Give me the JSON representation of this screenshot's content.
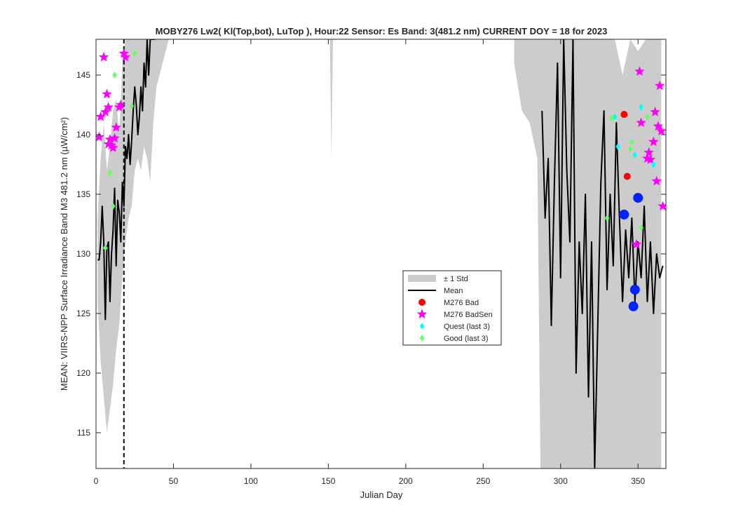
{
  "chart_data": {
    "type": "line",
    "title": "MOBY276   Lw2( Kl(Top,bot), LuTop ),   Hour:22 Sensor: Es Band: 3(481.2 nm)   CURRENT DOY = 18 for 2023",
    "xlabel": "Julian Day",
    "ylabel": "MEAN: VIIRS-NPP Surface Irradiance Band M3 481.2 nm (µW/cm²)",
    "xlim": [
      0,
      368
    ],
    "ylim": [
      112,
      148
    ],
    "xticks": [
      0,
      50,
      100,
      150,
      200,
      250,
      300,
      350
    ],
    "yticks": [
      115,
      120,
      125,
      130,
      135,
      140,
      145
    ],
    "grid": false,
    "legend_position": "center-right",
    "current_doy": 18,
    "colors": {
      "std_band": "#cccccc",
      "mean": "#000000",
      "bad": "#ff0000",
      "badsen": "#ff00ff",
      "quest": "#00ffff",
      "good": "#66ff66",
      "recent": "#0022ff"
    },
    "legend": [
      {
        "label": "± 1 Std",
        "key": "std_band",
        "marker": "patch"
      },
      {
        "label": "Mean",
        "key": "mean",
        "marker": "line"
      },
      {
        "label": "M276 Bad",
        "key": "bad",
        "marker": "circle"
      },
      {
        "label": "M276 BadSen",
        "key": "badsen",
        "marker": "star"
      },
      {
        "label": "Quest (last 3)",
        "key": "quest",
        "marker": "diamond"
      },
      {
        "label": "Good (last 3)",
        "key": "good",
        "marker": "diamond"
      }
    ],
    "std_band": [
      {
        "x": [
          1,
          3,
          5,
          7,
          9,
          11,
          13,
          15,
          17,
          19,
          21,
          23,
          25,
          27,
          29,
          31,
          33,
          35,
          37,
          39,
          41,
          43,
          45,
          47
        ],
        "upper": [
          133,
          138,
          141,
          137,
          139,
          142,
          143,
          140,
          146,
          148,
          148,
          148,
          148,
          148,
          148,
          148,
          148,
          148,
          148,
          148,
          148,
          148,
          148,
          148
        ],
        "lower": [
          126,
          121,
          118,
          115,
          117,
          119,
          122,
          124,
          128,
          131,
          133,
          134,
          137,
          138,
          137,
          139,
          138,
          136,
          141,
          144,
          145,
          146,
          147,
          148
        ]
      },
      {
        "x": [
          151,
          152,
          153
        ],
        "upper": [
          148,
          148,
          148
        ],
        "lower": [
          148,
          138,
          148
        ]
      },
      {
        "x": [
          270,
          275,
          280,
          285,
          287,
          290,
          295,
          300,
          305,
          310,
          315,
          320,
          325,
          330,
          335,
          340,
          345,
          350,
          355,
          360,
          365
        ],
        "upper": [
          148,
          148,
          148,
          148,
          148,
          148,
          148,
          148,
          148,
          148,
          148,
          148,
          148,
          148,
          148,
          145,
          148,
          147,
          148,
          148,
          148
        ],
        "lower": [
          146,
          142,
          141,
          138,
          112,
          112,
          112,
          112,
          112,
          112,
          112,
          112,
          112,
          112,
          112,
          112,
          112,
          112,
          112,
          112,
          112
        ]
      }
    ],
    "mean_series": [
      {
        "x": [
          1,
          2,
          3,
          4,
          5,
          6,
          7,
          8,
          9,
          10,
          11,
          12,
          13,
          14,
          15,
          16,
          17,
          18,
          19,
          20,
          21,
          22,
          23,
          24,
          25,
          26,
          27,
          28,
          29,
          30,
          31,
          32,
          33,
          34,
          35,
          36,
          37,
          38
        ],
        "y": [
          129.5,
          129.5,
          131,
          134,
          131,
          124.5,
          130.5,
          131,
          126,
          130,
          132,
          135.5,
          129,
          134.5,
          133.5,
          131,
          136,
          134,
          139,
          138,
          140,
          137.5,
          139.5,
          142,
          144,
          142.5,
          140,
          141.5,
          144,
          142,
          146,
          144,
          148,
          145,
          148,
          148,
          148,
          148
        ]
      },
      {
        "x": [
          288,
          290,
          292,
          294,
          296,
          298,
          300,
          302,
          304,
          306,
          308,
          310,
          312,
          314,
          316,
          318,
          320,
          322,
          324,
          326,
          328,
          330,
          332,
          334,
          336,
          338,
          340,
          342,
          344,
          346,
          348,
          350,
          352,
          354,
          356,
          358,
          360,
          362,
          364,
          366
        ],
        "y": [
          142,
          133,
          138,
          124,
          136,
          146,
          128,
          148,
          137,
          131,
          148,
          120,
          131,
          125,
          135,
          118,
          131,
          112,
          124,
          136,
          142,
          127,
          135,
          129,
          141,
          133,
          126,
          132,
          128,
          133,
          126,
          131,
          128,
          134,
          126,
          131,
          125,
          130,
          128,
          129
        ]
      }
    ],
    "series": [
      {
        "name": "M276 Bad",
        "key": "bad",
        "x": [
          341,
          343
        ],
        "y": [
          141.7,
          136.5
        ]
      },
      {
        "name": "M276 BadSen",
        "key": "badsen",
        "x": [
          2,
          3,
          5,
          6,
          7,
          8,
          8,
          9,
          10,
          11,
          12,
          13,
          15,
          16,
          18,
          19,
          349,
          351,
          352,
          356,
          357,
          358,
          360,
          361,
          362,
          363,
          364,
          365,
          366
        ],
        "y": [
          139.8,
          141.5,
          146.5,
          141.9,
          143.4,
          139.2,
          142.3,
          139.6,
          139.1,
          138.9,
          139.7,
          140.6,
          142.3,
          142.5,
          146.8,
          146.5,
          130.8,
          145.3,
          141.0,
          138.0,
          138.5,
          137.9,
          139.4,
          141.9,
          136.1,
          140.7,
          144.1,
          140.3,
          134.0
        ]
      },
      {
        "name": "Quest (last 3)",
        "key": "quest",
        "x": [
          335,
          337,
          348,
          352,
          360
        ],
        "y": [
          141.5,
          139.0,
          138.3,
          142.3,
          137.5
        ]
      },
      {
        "name": "Good (last 3)",
        "key": "good",
        "x": [
          6,
          9,
          11,
          12,
          23,
          25,
          330,
          333,
          345,
          346,
          352,
          356
        ],
        "y": [
          130.5,
          136.8,
          134.0,
          145.0,
          142.4,
          146.8,
          133.0,
          141.4,
          138.8,
          139.4,
          132.2,
          141.5
        ]
      },
      {
        "key": "recent",
        "x": [
          341,
          347,
          348,
          350
        ],
        "y": [
          133.3,
          125.6,
          127.0,
          134.7
        ]
      }
    ]
  }
}
